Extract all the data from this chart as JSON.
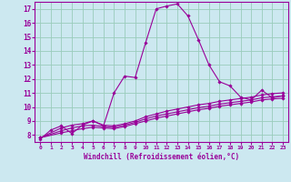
{
  "xlabel": "Windchill (Refroidissement éolien,°C)",
  "bg_color": "#cce8f0",
  "line_color": "#990099",
  "grid_color": "#99ccbb",
  "xlim": [
    -0.5,
    23.5
  ],
  "ylim": [
    7.5,
    17.5
  ],
  "xticks": [
    0,
    1,
    2,
    3,
    4,
    5,
    6,
    7,
    8,
    9,
    10,
    11,
    12,
    13,
    14,
    15,
    16,
    17,
    18,
    19,
    20,
    21,
    22,
    23
  ],
  "yticks": [
    8,
    9,
    10,
    11,
    12,
    13,
    14,
    15,
    16,
    17
  ],
  "curve1_x": [
    0,
    1,
    2,
    3,
    4,
    5,
    6,
    7,
    8,
    9,
    10,
    11,
    12,
    13,
    14,
    15,
    16,
    17,
    18,
    19,
    20,
    21,
    22,
    23
  ],
  "curve1_y": [
    7.7,
    8.35,
    8.65,
    8.1,
    8.7,
    9.0,
    8.65,
    11.0,
    12.2,
    12.1,
    14.6,
    17.0,
    17.2,
    17.35,
    16.5,
    14.8,
    13.0,
    11.8,
    11.5,
    10.7,
    10.5,
    11.2,
    10.65,
    10.8
  ],
  "curve2_x": [
    0,
    2,
    3,
    4,
    5,
    6,
    7,
    8,
    9,
    10,
    11,
    12,
    13,
    14,
    15,
    16,
    17,
    18,
    19,
    20,
    21,
    22,
    23
  ],
  "curve2_y": [
    7.8,
    8.5,
    8.7,
    8.8,
    9.0,
    8.7,
    8.65,
    8.8,
    9.0,
    9.3,
    9.5,
    9.7,
    9.85,
    10.0,
    10.15,
    10.25,
    10.4,
    10.5,
    10.6,
    10.7,
    10.85,
    10.95,
    11.0
  ],
  "curve3_x": [
    0,
    2,
    3,
    4,
    5,
    6,
    7,
    8,
    9,
    10,
    11,
    12,
    13,
    14,
    15,
    16,
    17,
    18,
    19,
    20,
    21,
    22,
    23
  ],
  "curve3_y": [
    7.8,
    8.3,
    8.5,
    8.65,
    8.7,
    8.6,
    8.55,
    8.7,
    8.9,
    9.15,
    9.35,
    9.5,
    9.65,
    9.8,
    9.95,
    10.05,
    10.2,
    10.3,
    10.4,
    10.5,
    10.65,
    10.72,
    10.78
  ],
  "curve4_x": [
    0,
    2,
    3,
    4,
    5,
    6,
    7,
    8,
    9,
    10,
    11,
    12,
    13,
    14,
    15,
    16,
    17,
    18,
    19,
    20,
    21,
    22,
    23
  ],
  "curve4_y": [
    7.8,
    8.15,
    8.3,
    8.45,
    8.55,
    8.5,
    8.45,
    8.6,
    8.8,
    9.0,
    9.2,
    9.35,
    9.5,
    9.65,
    9.8,
    9.9,
    10.05,
    10.15,
    10.25,
    10.35,
    10.5,
    10.57,
    10.62
  ]
}
